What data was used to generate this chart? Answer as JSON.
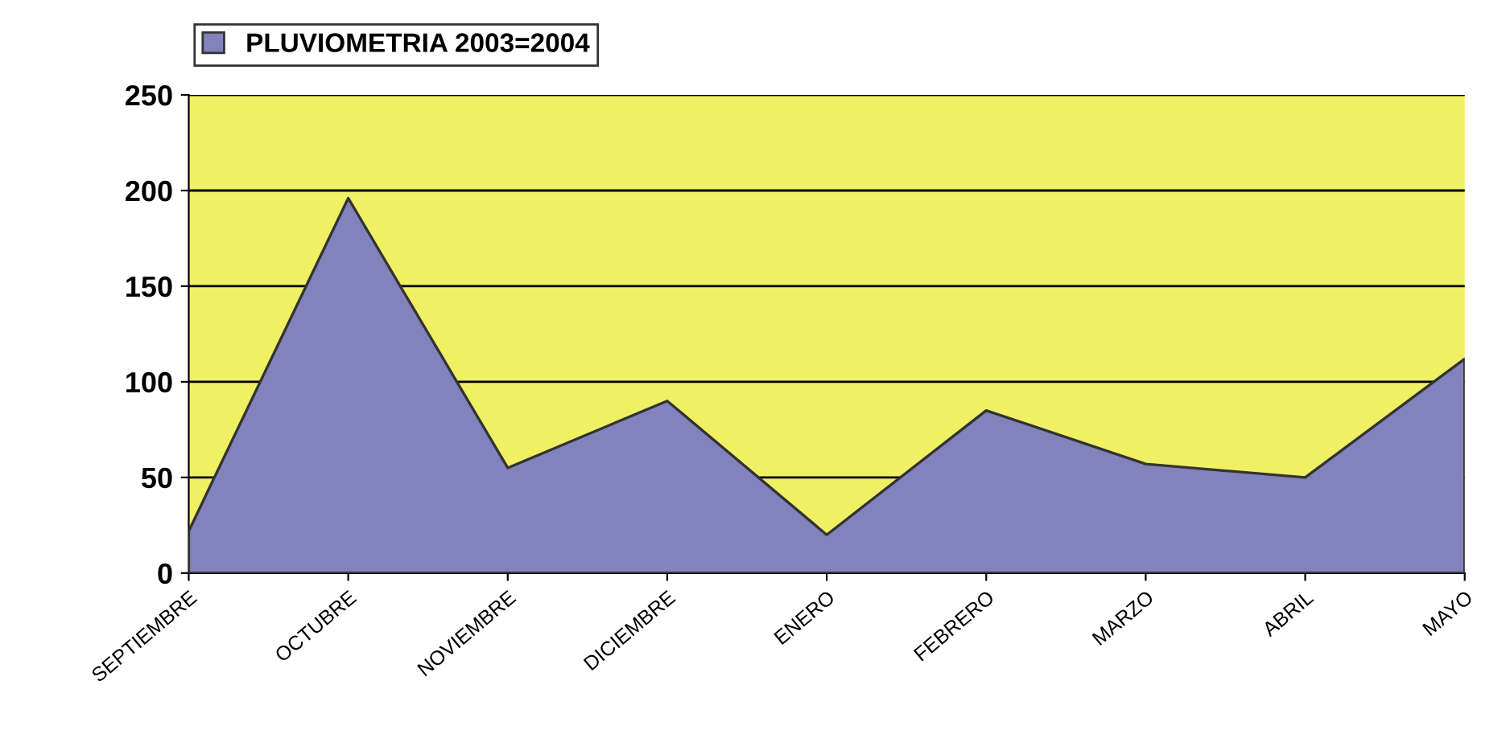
{
  "chart_data": {
    "type": "area",
    "categories": [
      "SEPTIEMBRE",
      "OCTUBRE",
      "NOVIEMBRE",
      "DICIEMBRE",
      "ENERO",
      "FEBRERO",
      "MARZO",
      "ABRIL",
      "MAYO"
    ],
    "series": [
      {
        "name": "PLUVIOMETRIA 2003=2004",
        "color": "#8282bc",
        "values": [
          22,
          196,
          55,
          90,
          20,
          85,
          57,
          50,
          112
        ]
      }
    ],
    "ylim": [
      0,
      250
    ],
    "yticks": [
      0,
      50,
      100,
      150,
      200,
      250
    ],
    "grid": "y",
    "legend": "top left"
  }
}
